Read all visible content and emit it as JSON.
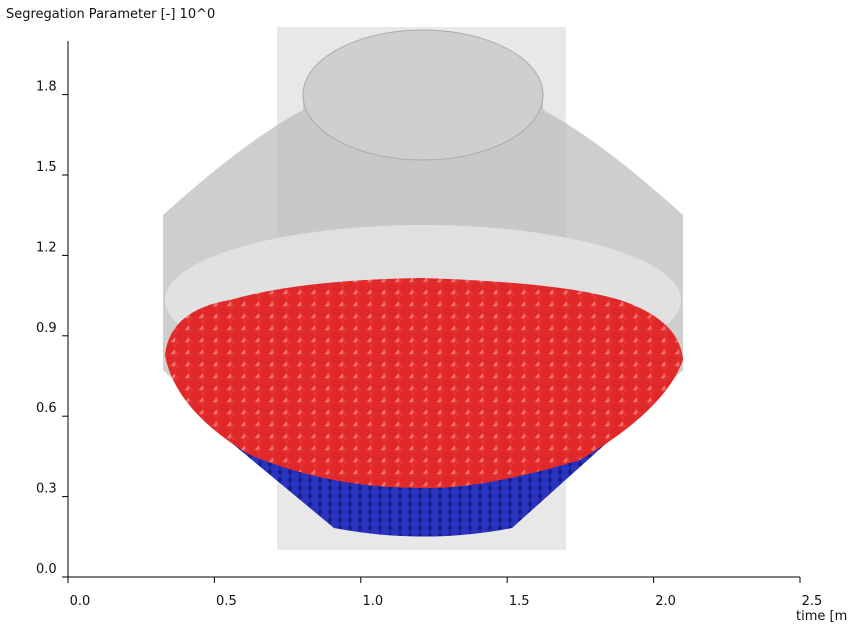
{
  "chart_data": {
    "type": "line",
    "title": "Segregation Parameter [-] 10^0",
    "x_label": "time [m",
    "xlim": [
      0,
      2.5
    ],
    "ylim": [
      0,
      2.0
    ],
    "xticks": [
      {
        "value": 0,
        "label": "0.0"
      },
      0.5,
      {
        "value": 1,
        "label": "1.0"
      },
      1.5,
      {
        "value": 2,
        "label": "2.0"
      },
      2.5
    ],
    "yticks": [
      {
        "value": 0,
        "label": "0.0"
      },
      0.3,
      0.6,
      0.9,
      1.2,
      1.5,
      1.8
    ],
    "axis_color": "#000000"
  }
}
